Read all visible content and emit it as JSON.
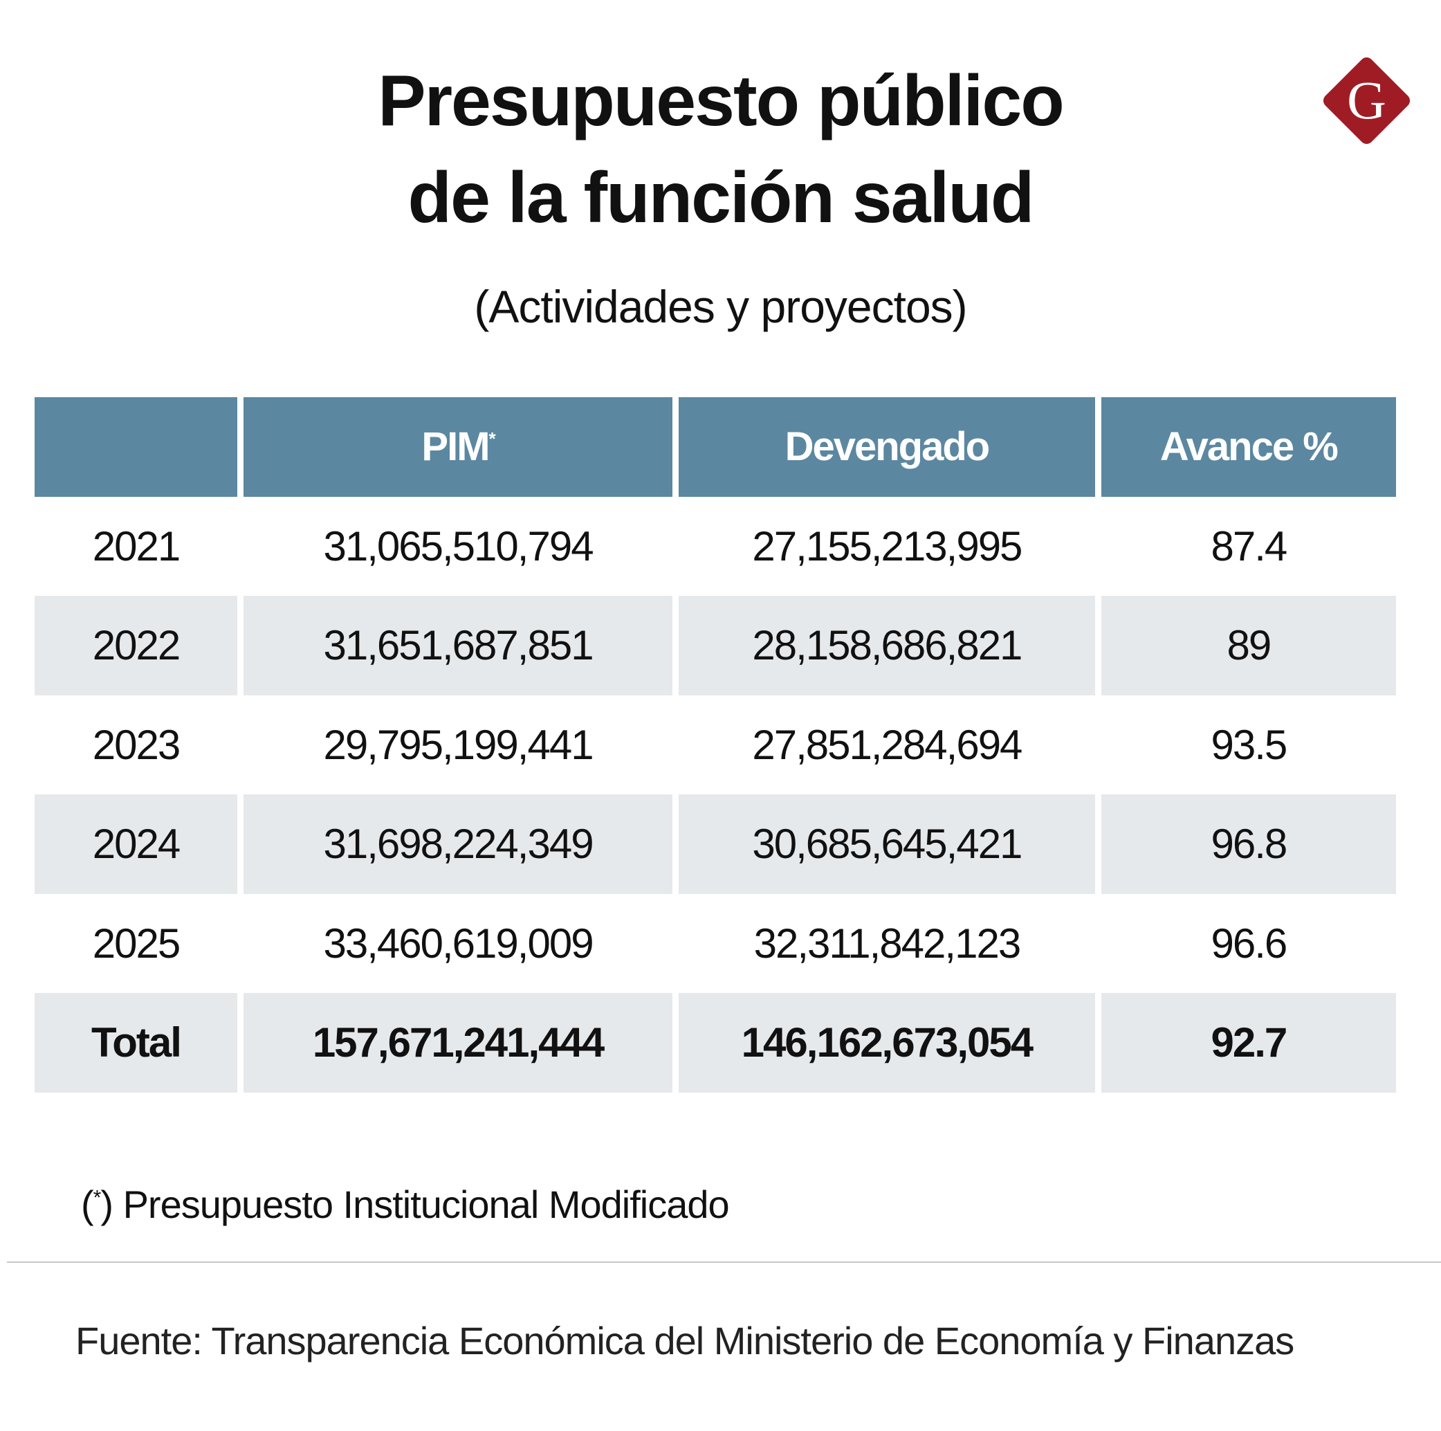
{
  "title_line1": "Presupuesto público",
  "title_line2": "de la función salud",
  "subtitle": "(Actividades y proyectos)",
  "logo": {
    "letter": "G",
    "color": "#a01c25"
  },
  "colors": {
    "header": "#5b87a1",
    "row_alt": "#e6e9ec"
  },
  "table": {
    "headers": [
      "",
      "PIM",
      "Devengado",
      "Avance %"
    ],
    "pim_mark": "*",
    "rows": [
      [
        "2021",
        "31,065,510,794",
        "27,155,213,995",
        "87.4"
      ],
      [
        "2022",
        "31,651,687,851",
        "28,158,686,821",
        "89"
      ],
      [
        "2023",
        "29,795,199,441",
        "27,851,284,694",
        "93.5"
      ],
      [
        "2024",
        "31,698,224,349",
        "30,685,645,421",
        "96.8"
      ],
      [
        "2025",
        "33,460,619,009",
        "32,311,842,123",
        "96.6"
      ]
    ],
    "total": [
      "Total",
      "157,671,241,444",
      "146,162,673,054",
      "92.7"
    ]
  },
  "footnote": {
    "mark": "*",
    "text": "Presupuesto Institucional Modificado"
  },
  "source": "Fuente: Transparencia Económica del Ministerio de Economía y Finanzas"
}
